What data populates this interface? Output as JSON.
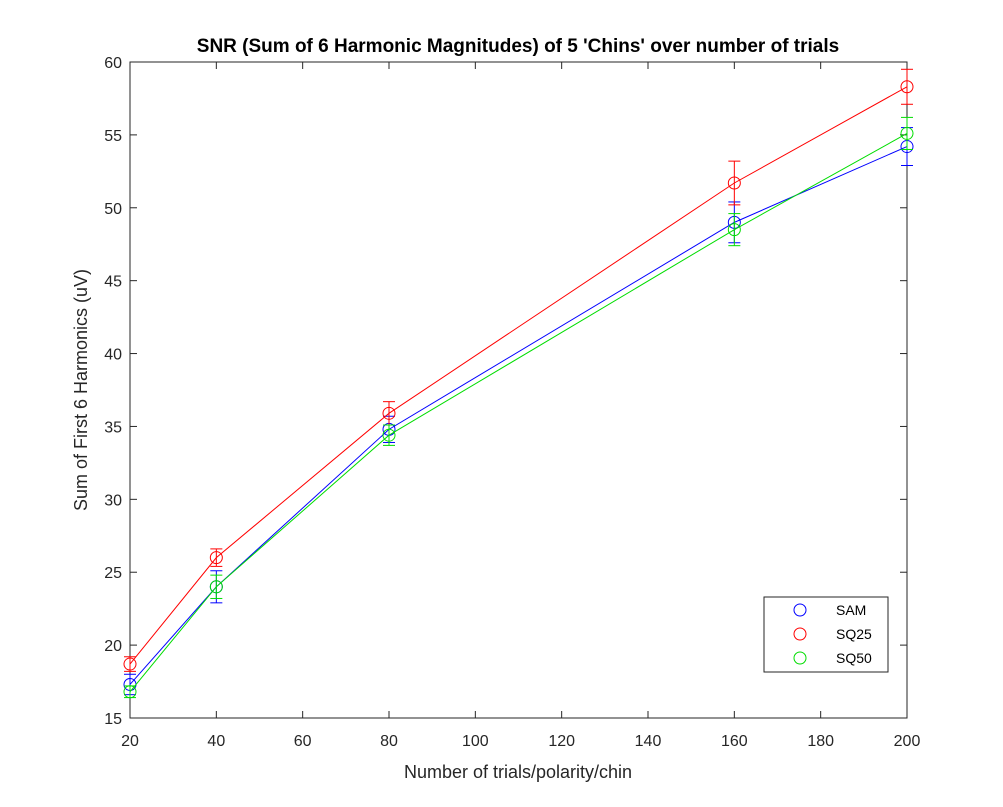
{
  "chart_data": {
    "type": "line",
    "title": "SNR (Sum of 6 Harmonic Magnitudes) of 5 'Chins' over number of trials",
    "xlabel": "Number of trials/polarity/chin",
    "ylabel": "Sum of First 6 Harmonics (uV)",
    "xlim": [
      20,
      200
    ],
    "ylim": [
      15,
      60
    ],
    "xticks": [
      20,
      40,
      60,
      80,
      100,
      120,
      140,
      160,
      180,
      200
    ],
    "yticks": [
      15,
      20,
      25,
      30,
      35,
      40,
      45,
      50,
      55,
      60
    ],
    "x": [
      20,
      40,
      80,
      160,
      200
    ],
    "grid": false,
    "legend_position": "bottom-right",
    "markers": "open-circle",
    "error_bars": true,
    "series": [
      {
        "name": "SAM",
        "color": "#0000ff",
        "values": [
          17.3,
          24.0,
          34.8,
          49.0,
          54.2
        ],
        "err": [
          0.7,
          1.1,
          0.9,
          1.4,
          1.3
        ]
      },
      {
        "name": "SQ25",
        "color": "#ff0000",
        "values": [
          18.7,
          26.0,
          35.9,
          51.7,
          58.3
        ],
        "err": [
          0.5,
          0.6,
          0.8,
          1.5,
          1.2
        ]
      },
      {
        "name": "SQ50",
        "color": "#00dd00",
        "values": [
          16.8,
          24.0,
          34.4,
          48.5,
          55.1
        ],
        "err": [
          0.4,
          0.8,
          0.7,
          1.1,
          1.1
        ]
      }
    ]
  }
}
